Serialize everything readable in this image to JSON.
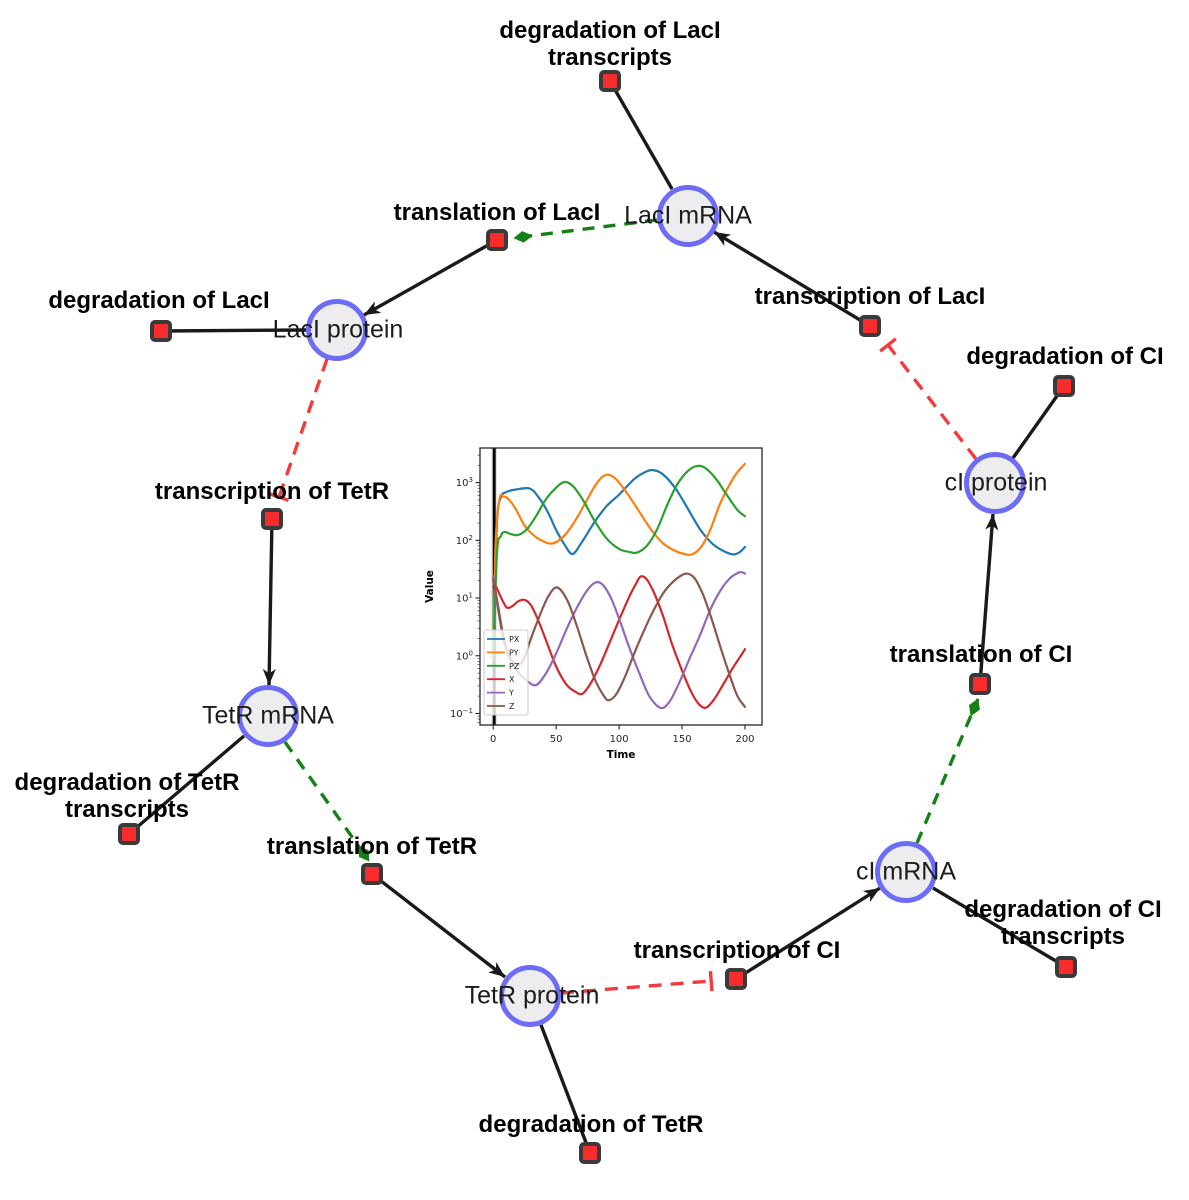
{
  "diagram": {
    "species": [
      {
        "id": "laci-mrna",
        "label": "LacI mRNA"
      },
      {
        "id": "laci-protein",
        "label": "LacI protein"
      },
      {
        "id": "tetr-mrna",
        "label": "TetR mRNA"
      },
      {
        "id": "tetr-protein",
        "label": "TetR protein"
      },
      {
        "id": "ci-mrna",
        "label": "cI mRNA"
      },
      {
        "id": "ci-protein",
        "label": "cI protein"
      }
    ],
    "reactions": [
      {
        "id": "deg-laci-transcripts",
        "label": "degradation of LacI transcripts"
      },
      {
        "id": "translation-laci",
        "label": "translation of LacI"
      },
      {
        "id": "deg-laci",
        "label": "degradation of LacI"
      },
      {
        "id": "transcription-tetr",
        "label": "transcription of TetR"
      },
      {
        "id": "deg-tetr-transcripts",
        "label": "degradation of TetR transcripts"
      },
      {
        "id": "translation-tetr",
        "label": "translation of TetR"
      },
      {
        "id": "deg-tetr",
        "label": "degradation of TetR"
      },
      {
        "id": "transcription-ci",
        "label": "transcription of CI"
      },
      {
        "id": "deg-ci-transcripts",
        "label": "degradation of CI transcripts"
      },
      {
        "id": "translation-ci",
        "label": "translation of CI"
      },
      {
        "id": "deg-ci",
        "label": "degradation of CI"
      },
      {
        "id": "transcription-laci",
        "label": "transcription of LacI"
      }
    ],
    "edges": [
      {
        "from": "LacI mRNA",
        "to": "degradation of LacI transcripts",
        "type": "consumption"
      },
      {
        "from": "transcription of LacI",
        "to": "LacI mRNA",
        "type": "production"
      },
      {
        "from": "LacI mRNA",
        "to": "translation of LacI",
        "type": "modifier"
      },
      {
        "from": "translation of LacI",
        "to": "LacI protein",
        "type": "production"
      },
      {
        "from": "LacI protein",
        "to": "degradation of LacI",
        "type": "consumption"
      },
      {
        "from": "LacI protein",
        "to": "transcription of TetR",
        "type": "inhibition"
      },
      {
        "from": "transcription of TetR",
        "to": "TetR mRNA",
        "type": "production"
      },
      {
        "from": "TetR mRNA",
        "to": "degradation of TetR transcripts",
        "type": "consumption"
      },
      {
        "from": "TetR mRNA",
        "to": "translation of TetR",
        "type": "modifier"
      },
      {
        "from": "translation of TetR",
        "to": "TetR protein",
        "type": "production"
      },
      {
        "from": "TetR protein",
        "to": "degradation of TetR",
        "type": "consumption"
      },
      {
        "from": "TetR protein",
        "to": "transcription of CI",
        "type": "inhibition"
      },
      {
        "from": "transcription of CI",
        "to": "cI mRNA",
        "type": "production"
      },
      {
        "from": "cI mRNA",
        "to": "degradation of CI transcripts",
        "type": "consumption"
      },
      {
        "from": "cI mRNA",
        "to": "translation of CI",
        "type": "modifier"
      },
      {
        "from": "translation of CI",
        "to": "cI protein",
        "type": "production"
      },
      {
        "from": "cI protein",
        "to": "degradation of CI",
        "type": "consumption"
      },
      {
        "from": "cI protein",
        "to": "transcription of LacI",
        "type": "inhibition"
      }
    ],
    "colors": {
      "species_fill": "#ededef",
      "species_stroke": "#6c6cf7",
      "reaction_fill": "#f82c2c",
      "reaction_stroke": "#3a3a3a",
      "edge_black": "#1a1a1a",
      "activation_green": "#158015",
      "inhibition_red": "#f23b3b"
    }
  },
  "chart_data": {
    "type": "line",
    "title": "",
    "xlabel": "Time",
    "ylabel": "Value",
    "x_ticks": [
      0,
      50,
      100,
      150,
      200
    ],
    "y_ticks_exp": [
      -1,
      0,
      1,
      2,
      3
    ],
    "xlim": [
      -10.5,
      213.5
    ],
    "ylim": [
      0.0631,
      3981
    ],
    "yscale": "log",
    "grid": false,
    "legend_position": "lower left",
    "vline_x": 0.8,
    "series": [
      {
        "name": "PX",
        "color": "#1f77b4",
        "points": [
          [
            0,
            1.5
          ],
          [
            3,
            200
          ],
          [
            6,
            550
          ],
          [
            10,
            680
          ],
          [
            18,
            760
          ],
          [
            29,
            790
          ],
          [
            36,
            560
          ],
          [
            44,
            290
          ],
          [
            50,
            150
          ],
          [
            57,
            82
          ],
          [
            63,
            58
          ],
          [
            70,
            90
          ],
          [
            80,
            200
          ],
          [
            90,
            390
          ],
          [
            100,
            620
          ],
          [
            112,
            1150
          ],
          [
            120,
            1500
          ],
          [
            127,
            1650
          ],
          [
            135,
            1380
          ],
          [
            145,
            780
          ],
          [
            155,
            340
          ],
          [
            165,
            148
          ],
          [
            175,
            84
          ],
          [
            185,
            62
          ],
          [
            191,
            57
          ],
          [
            196,
            63
          ],
          [
            200,
            77
          ]
        ]
      },
      {
        "name": "PY",
        "color": "#ff7f0e",
        "points": [
          [
            0,
            0.8
          ],
          [
            2,
            100
          ],
          [
            5,
            520
          ],
          [
            8,
            575
          ],
          [
            12,
            520
          ],
          [
            18,
            345
          ],
          [
            25,
            180
          ],
          [
            33,
            118
          ],
          [
            40,
            96
          ],
          [
            47,
            88
          ],
          [
            55,
            112
          ],
          [
            63,
            185
          ],
          [
            72,
            400
          ],
          [
            80,
            820
          ],
          [
            86,
            1220
          ],
          [
            91,
            1370
          ],
          [
            97,
            1180
          ],
          [
            105,
            720
          ],
          [
            115,
            340
          ],
          [
            125,
            158
          ],
          [
            135,
            88
          ],
          [
            145,
            65
          ],
          [
            152,
            58
          ],
          [
            158,
            57
          ],
          [
            165,
            76
          ],
          [
            172,
            145
          ],
          [
            180,
            420
          ],
          [
            188,
            950
          ],
          [
            194,
            1520
          ],
          [
            200,
            2120
          ]
        ]
      },
      {
        "name": "PZ",
        "color": "#2ca02c",
        "points": [
          [
            0,
            0.8
          ],
          [
            3,
            60
          ],
          [
            6,
            118
          ],
          [
            9,
            140
          ],
          [
            14,
            128
          ],
          [
            20,
            124
          ],
          [
            27,
            158
          ],
          [
            34,
            262
          ],
          [
            42,
            520
          ],
          [
            50,
            820
          ],
          [
            57,
            1030
          ],
          [
            64,
            840
          ],
          [
            72,
            470
          ],
          [
            80,
            228
          ],
          [
            90,
            108
          ],
          [
            100,
            71
          ],
          [
            108,
            63
          ],
          [
            114,
            61
          ],
          [
            122,
            80
          ],
          [
            130,
            152
          ],
          [
            138,
            400
          ],
          [
            146,
            920
          ],
          [
            155,
            1620
          ],
          [
            163,
            1960
          ],
          [
            170,
            1690
          ],
          [
            178,
            1080
          ],
          [
            186,
            590
          ],
          [
            194,
            335
          ],
          [
            200,
            262
          ]
        ]
      },
      {
        "name": "X",
        "color": "#d62728",
        "points": [
          [
            0,
            20
          ],
          [
            4,
            13
          ],
          [
            8,
            8.5
          ],
          [
            11,
            6.8
          ],
          [
            15,
            7.2
          ],
          [
            20,
            8.8
          ],
          [
            25,
            9.3
          ],
          [
            30,
            7.5
          ],
          [
            36,
            4
          ],
          [
            43,
            1.6
          ],
          [
            50,
            0.65
          ],
          [
            58,
            0.32
          ],
          [
            65,
            0.24
          ],
          [
            71,
            0.22
          ],
          [
            78,
            0.35
          ],
          [
            85,
            0.7
          ],
          [
            92,
            1.6
          ],
          [
            100,
            4.2
          ],
          [
            108,
            10.5
          ],
          [
            113,
            17
          ],
          [
            117,
            23.5
          ],
          [
            122,
            21
          ],
          [
            128,
            12
          ],
          [
            135,
            4.8
          ],
          [
            142,
            1.6
          ],
          [
            150,
            0.55
          ],
          [
            158,
            0.22
          ],
          [
            164,
            0.14
          ],
          [
            169,
            0.126
          ],
          [
            175,
            0.17
          ],
          [
            182,
            0.3
          ],
          [
            190,
            0.6
          ],
          [
            196,
            0.95
          ],
          [
            200,
            1.3
          ]
        ]
      },
      {
        "name": "Y",
        "color": "#9467bd",
        "points": [
          [
            0,
            24
          ],
          [
            4,
            6
          ],
          [
            8,
            2
          ],
          [
            13,
            0.9
          ],
          [
            19,
            0.55
          ],
          [
            26,
            0.38
          ],
          [
            34,
            0.31
          ],
          [
            42,
            0.5
          ],
          [
            50,
            1.1
          ],
          [
            58,
            2.8
          ],
          [
            66,
            6.5
          ],
          [
            74,
            13
          ],
          [
            81,
            18.5
          ],
          [
            87,
            17
          ],
          [
            94,
            9.5
          ],
          [
            101,
            3.8
          ],
          [
            108,
            1.4
          ],
          [
            116,
            0.5
          ],
          [
            124,
            0.2
          ],
          [
            133,
            0.125
          ],
          [
            140,
            0.16
          ],
          [
            148,
            0.35
          ],
          [
            156,
            0.9
          ],
          [
            164,
            2.2
          ],
          [
            172,
            6
          ],
          [
            180,
            13
          ],
          [
            188,
            22
          ],
          [
            196,
            28
          ],
          [
            200,
            26.5
          ]
        ]
      },
      {
        "name": "Z",
        "color": "#8c564b",
        "points": [
          [
            0,
            22
          ],
          [
            4,
            7
          ],
          [
            8,
            2.2
          ],
          [
            12,
            1.1
          ],
          [
            18,
            0.7
          ],
          [
            24,
            0.85
          ],
          [
            30,
            2
          ],
          [
            37,
            5
          ],
          [
            43,
            10
          ],
          [
            49,
            15
          ],
          [
            54,
            13.5
          ],
          [
            60,
            8
          ],
          [
            67,
            3
          ],
          [
            74,
            1
          ],
          [
            81,
            0.38
          ],
          [
            88,
            0.2
          ],
          [
            92,
            0.17
          ],
          [
            98,
            0.22
          ],
          [
            105,
            0.45
          ],
          [
            112,
            1.1
          ],
          [
            120,
            2.8
          ],
          [
            128,
            6.5
          ],
          [
            136,
            13
          ],
          [
            145,
            21
          ],
          [
            153,
            26.5
          ],
          [
            160,
            22
          ],
          [
            167,
            11
          ],
          [
            174,
            4
          ],
          [
            181,
            1.3
          ],
          [
            188,
            0.45
          ],
          [
            194,
            0.2
          ],
          [
            200,
            0.13
          ]
        ]
      }
    ]
  }
}
